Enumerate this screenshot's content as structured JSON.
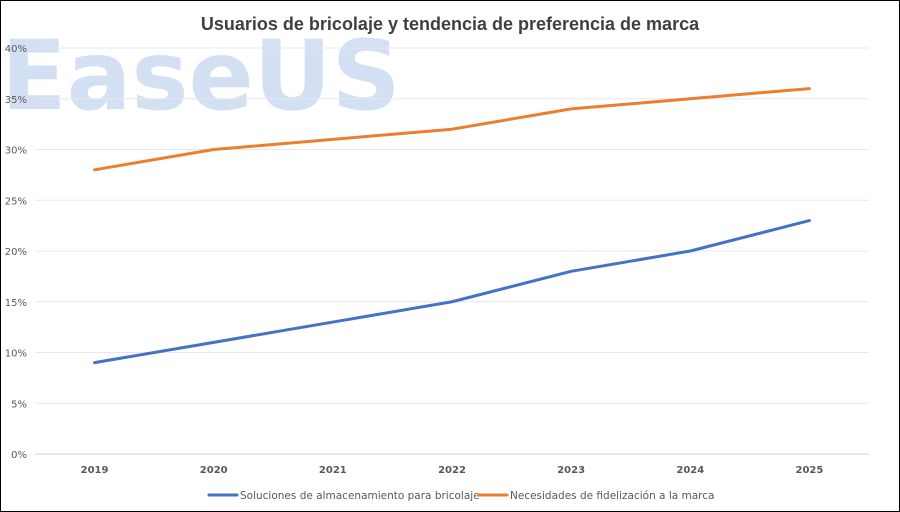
{
  "watermark": "EaseUS",
  "colors": {
    "series1": "#4472C4",
    "series2": "#ED7D31",
    "grid": "#e8e8e8"
  },
  "chart_data": {
    "type": "line",
    "title": "Usuarios de bricolaje y tendencia de preferencia de marca",
    "xlabel": "",
    "ylabel": "",
    "categories": [
      "2019",
      "2020",
      "2021",
      "2022",
      "2023",
      "2024",
      "2025"
    ],
    "ylim": [
      0,
      40
    ],
    "yticks": [
      "0%",
      "5%",
      "10%",
      "15%",
      "20%",
      "25%",
      "30%",
      "35%",
      "40%"
    ],
    "grid": true,
    "legend_position": "bottom",
    "series": [
      {
        "name": "Soluciones de almacenamiento para bricolaje",
        "values": [
          9,
          11,
          13,
          15,
          18,
          20,
          23
        ]
      },
      {
        "name": "Necesidades de fidelización a la marca",
        "values": [
          28,
          30,
          31,
          32,
          34,
          35,
          36
        ]
      }
    ]
  }
}
